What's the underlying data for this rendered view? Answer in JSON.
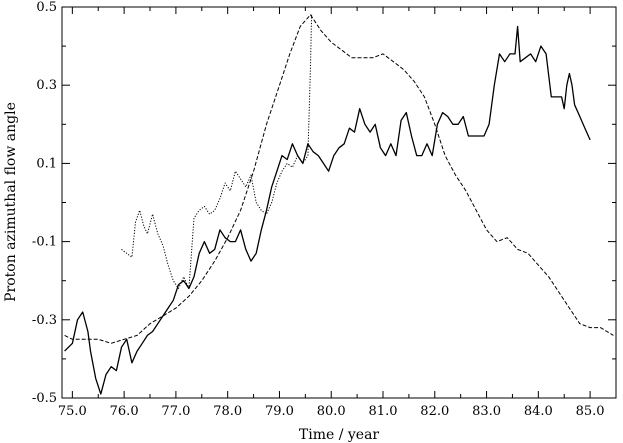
{
  "chart_data": {
    "type": "line",
    "title": "",
    "xlabel": "Time / year",
    "ylabel": "Proton azimuthal flow angle",
    "xlim": [
      74.8,
      85.5
    ],
    "ylim": [
      -0.5,
      0.5
    ],
    "x_ticks": [
      75.0,
      76.0,
      77.0,
      78.0,
      79.0,
      80.0,
      81.0,
      82.0,
      83.0,
      84.0,
      85.0
    ],
    "x_tick_labels": [
      "75.0",
      "76.0",
      "77.0",
      "78.0",
      "79.0",
      "80.0",
      "81.0",
      "82.0",
      "83.0",
      "84.0",
      "85.0"
    ],
    "y_ticks": [
      -0.5,
      -0.3,
      -0.1,
      0.1,
      0.3,
      0.5
    ],
    "y_tick_labels": [
      "-0.5",
      "-0.3",
      "-0.1",
      "0.1",
      "0.3",
      "0.5"
    ],
    "grid": false,
    "legend": "none",
    "series": [
      {
        "style": "solid",
        "color": "#000000",
        "x": [
          74.85,
          75.0,
          75.1,
          75.2,
          75.3,
          75.35,
          75.45,
          75.55,
          75.65,
          75.75,
          75.85,
          75.95,
          76.05,
          76.15,
          76.25,
          76.35,
          76.45,
          76.55,
          76.65,
          76.75,
          76.85,
          76.95,
          77.05,
          77.15,
          77.25,
          77.35,
          77.45,
          77.55,
          77.65,
          77.75,
          77.85,
          77.95,
          78.05,
          78.15,
          78.25,
          78.35,
          78.45,
          78.55,
          78.65,
          78.75,
          78.85,
          78.95,
          79.05,
          79.15,
          79.25,
          79.35,
          79.45,
          79.55,
          79.65,
          79.75,
          79.85,
          79.95,
          80.05,
          80.15,
          80.25,
          80.35,
          80.45,
          80.55,
          80.65,
          80.75,
          80.85,
          80.95,
          81.05,
          81.15,
          81.25,
          81.35,
          81.45,
          81.55,
          81.65,
          81.75,
          81.85,
          81.95,
          82.05,
          82.15,
          82.25,
          82.35,
          82.45,
          82.55,
          82.65,
          82.75,
          82.85,
          82.95,
          83.05,
          83.15,
          83.25,
          83.35,
          83.45,
          83.55,
          83.6,
          83.65,
          83.75,
          83.85,
          83.95,
          84.05,
          84.15,
          84.25,
          84.35,
          84.45,
          84.5,
          84.55,
          84.6,
          84.65,
          84.7,
          84.8,
          84.9,
          85.0
        ],
        "y": [
          -0.38,
          -0.36,
          -0.3,
          -0.28,
          -0.33,
          -0.38,
          -0.45,
          -0.49,
          -0.44,
          -0.42,
          -0.43,
          -0.37,
          -0.35,
          -0.41,
          -0.38,
          -0.36,
          -0.34,
          -0.33,
          -0.31,
          -0.29,
          -0.27,
          -0.25,
          -0.21,
          -0.2,
          -0.22,
          -0.19,
          -0.13,
          -0.1,
          -0.13,
          -0.12,
          -0.07,
          -0.09,
          -0.1,
          -0.1,
          -0.07,
          -0.12,
          -0.15,
          -0.13,
          -0.07,
          -0.02,
          0.04,
          0.08,
          0.12,
          0.11,
          0.15,
          0.12,
          0.1,
          0.15,
          0.13,
          0.12,
          0.1,
          0.08,
          0.12,
          0.14,
          0.15,
          0.19,
          0.18,
          0.24,
          0.2,
          0.18,
          0.2,
          0.14,
          0.12,
          0.15,
          0.12,
          0.21,
          0.23,
          0.17,
          0.12,
          0.12,
          0.15,
          0.12,
          0.2,
          0.23,
          0.22,
          0.2,
          0.2,
          0.22,
          0.17,
          0.17,
          0.17,
          0.17,
          0.2,
          0.3,
          0.38,
          0.36,
          0.38,
          0.38,
          0.45,
          0.36,
          0.37,
          0.38,
          0.36,
          0.4,
          0.38,
          0.27,
          0.27,
          0.27,
          0.24,
          0.3,
          0.33,
          0.3,
          0.25,
          0.22,
          0.19,
          0.16
        ]
      },
      {
        "style": "dashed",
        "color": "#000000",
        "x": [
          74.85,
          75.0,
          75.25,
          75.5,
          75.75,
          76.0,
          76.25,
          76.5,
          76.75,
          77.0,
          77.25,
          77.5,
          77.75,
          78.0,
          78.25,
          78.5,
          78.75,
          79.0,
          79.2,
          79.4,
          79.6,
          79.8,
          80.0,
          80.2,
          80.4,
          80.6,
          80.8,
          81.0,
          81.2,
          81.4,
          81.6,
          81.8,
          82.0,
          82.2,
          82.4,
          82.6,
          82.8,
          83.0,
          83.2,
          83.4,
          83.6,
          83.8,
          84.0,
          84.2,
          84.4,
          84.6,
          84.8,
          85.0,
          85.2,
          85.45
        ],
        "y": [
          -0.34,
          -0.35,
          -0.35,
          -0.35,
          -0.36,
          -0.35,
          -0.34,
          -0.31,
          -0.29,
          -0.27,
          -0.24,
          -0.2,
          -0.15,
          -0.09,
          -0.02,
          0.08,
          0.2,
          0.3,
          0.38,
          0.45,
          0.48,
          0.44,
          0.41,
          0.39,
          0.37,
          0.37,
          0.37,
          0.38,
          0.36,
          0.34,
          0.31,
          0.27,
          0.2,
          0.12,
          0.07,
          0.03,
          -0.02,
          -0.07,
          -0.1,
          -0.09,
          -0.12,
          -0.13,
          -0.16,
          -0.19,
          -0.23,
          -0.27,
          -0.31,
          -0.32,
          -0.32,
          -0.34
        ]
      },
      {
        "style": "dotted",
        "color": "#000000",
        "x": [
          75.95,
          76.05,
          76.15,
          76.22,
          76.3,
          76.38,
          76.45,
          76.55,
          76.65,
          76.75,
          76.85,
          76.95,
          77.05,
          77.15,
          77.25,
          77.35,
          77.45,
          77.55,
          77.65,
          77.75,
          77.85,
          77.95,
          78.05,
          78.15,
          78.25,
          78.35,
          78.45,
          78.55,
          78.65,
          78.75,
          78.85,
          78.95,
          79.05,
          79.15,
          79.25,
          79.35,
          79.45,
          79.55,
          79.6,
          79.62
        ],
        "y": [
          -0.12,
          -0.13,
          -0.14,
          -0.05,
          -0.02,
          -0.06,
          -0.08,
          -0.03,
          -0.08,
          -0.11,
          -0.16,
          -0.2,
          -0.22,
          -0.19,
          -0.22,
          -0.04,
          -0.02,
          -0.01,
          -0.03,
          -0.02,
          0.01,
          0.05,
          0.03,
          0.08,
          0.06,
          0.04,
          0.07,
          0.0,
          -0.02,
          -0.03,
          0.0,
          0.05,
          0.08,
          0.1,
          0.09,
          0.12,
          0.1,
          0.12,
          0.35,
          0.48
        ]
      }
    ]
  }
}
